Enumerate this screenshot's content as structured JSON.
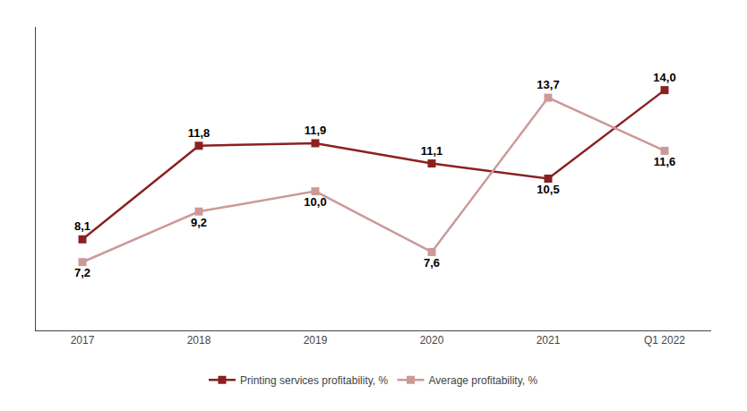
{
  "chart_data": {
    "type": "line",
    "categories": [
      "2017",
      "2018",
      "2019",
      "2020",
      "2021",
      "Q1 2022"
    ],
    "series": [
      {
        "name": "Printing services profitability, %",
        "color": "#8B2020",
        "marker": "square",
        "values": [
          8.1,
          11.8,
          11.9,
          11.1,
          10.5,
          14.0
        ],
        "value_labels": [
          "8,1",
          "11,8",
          "11,9",
          "11,1",
          "10,5",
          "14,0"
        ]
      },
      {
        "name": "Average profitability, %",
        "color": "#CC9999",
        "marker": "square",
        "values": [
          7.2,
          9.2,
          10.0,
          7.6,
          13.7,
          11.6
        ],
        "value_labels": [
          "7,2",
          "9,2",
          "10,0",
          "7,6",
          "13,7",
          "11,6"
        ]
      }
    ],
    "ylim": [
      4.5,
      16.5
    ],
    "data_labels": true,
    "tick_labels": "x",
    "grid": false,
    "legend": "bottom"
  }
}
